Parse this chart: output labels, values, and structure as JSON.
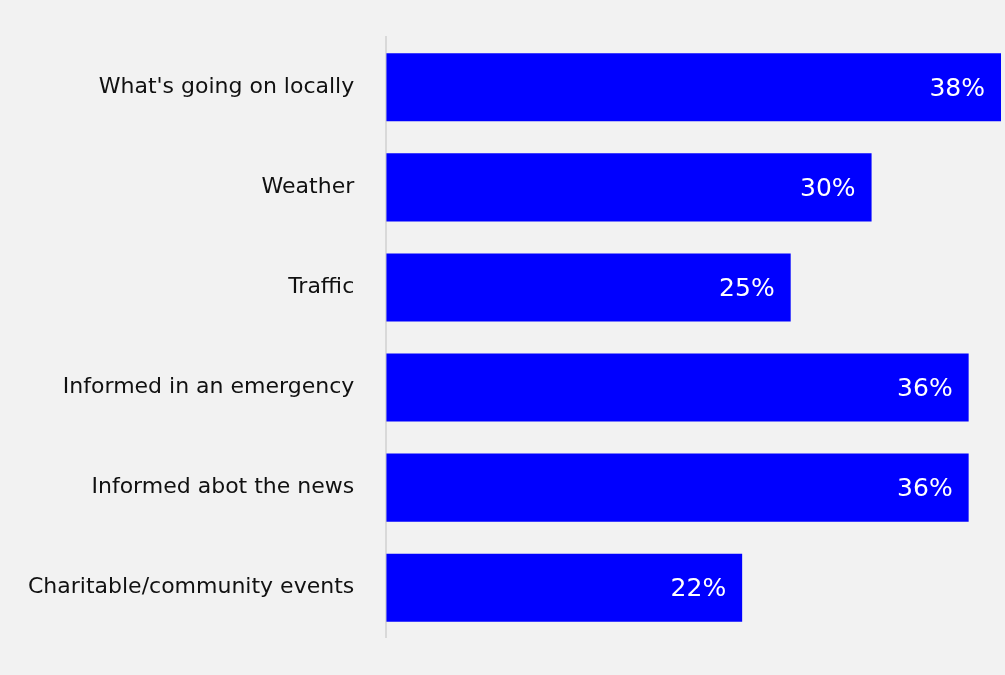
{
  "chart_data": {
    "type": "bar",
    "orientation": "horizontal",
    "categories": [
      "What's going on locally",
      "Weather",
      "Traffic",
      "Informed in an emergency",
      "Informed abot the news",
      "Charitable/community events"
    ],
    "values": [
      38,
      30,
      25,
      36,
      36,
      22
    ],
    "value_labels": [
      "38%",
      "30%",
      "25%",
      "36%",
      "36%",
      "22%"
    ],
    "color": "#0000ff",
    "tick_labels": "y",
    "legend": false
  }
}
